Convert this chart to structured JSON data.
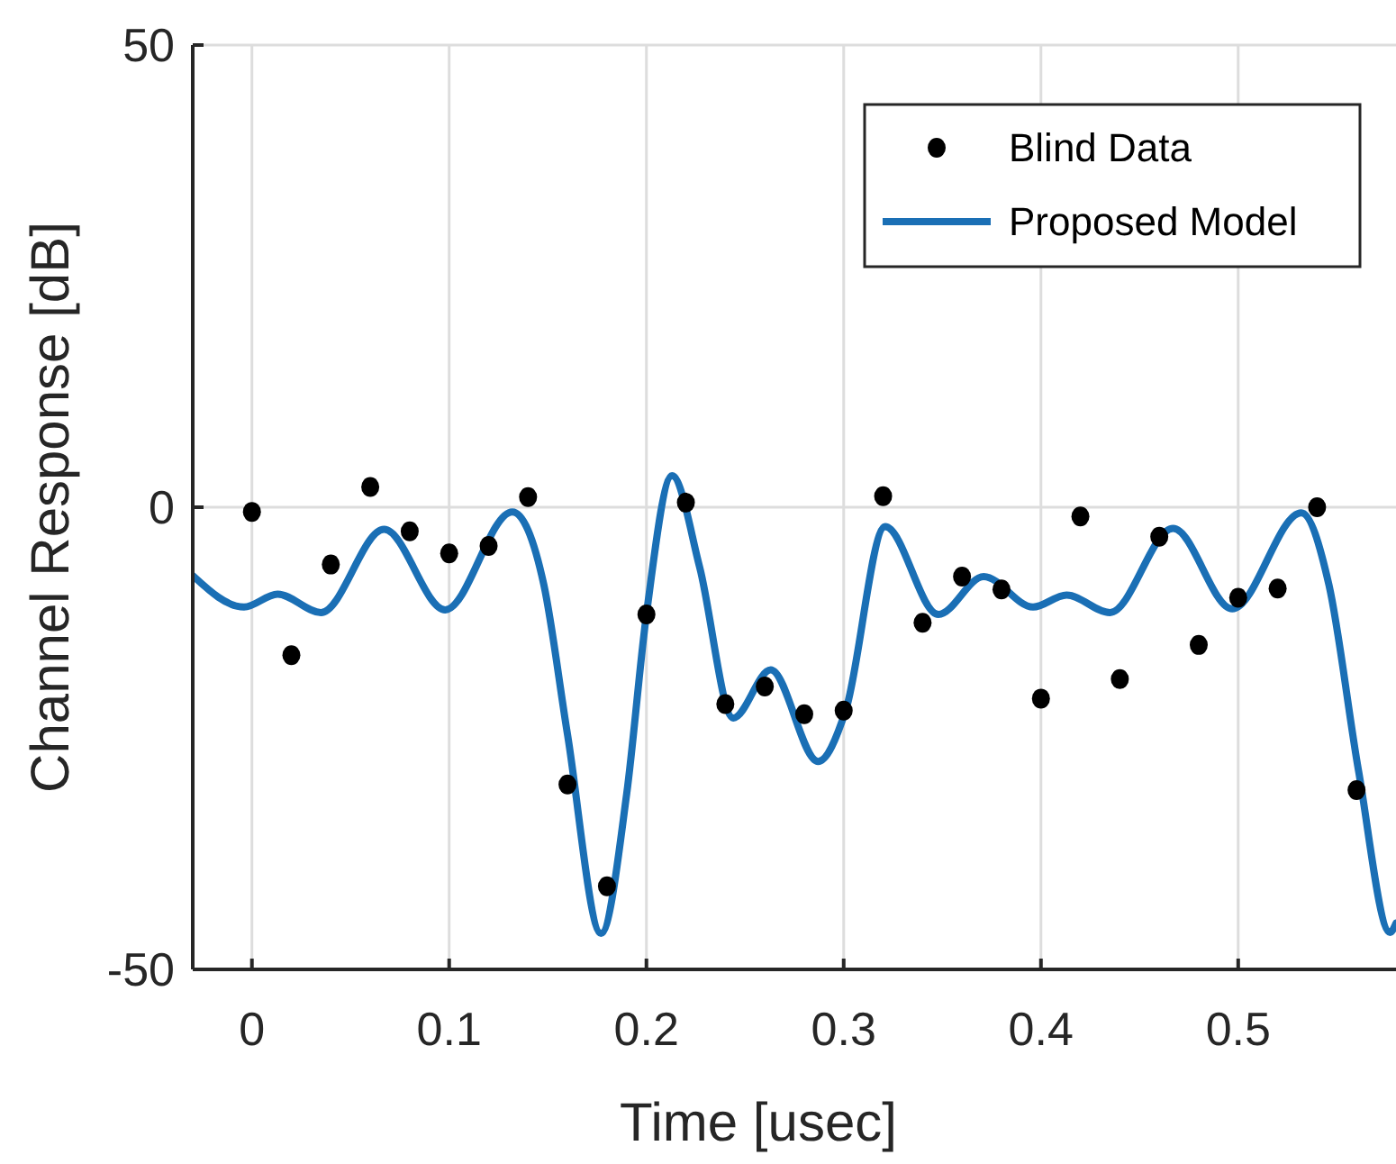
{
  "chart_data": {
    "type": "scatter",
    "xlabel": "Time [usec]",
    "ylabel": "Channel Response [dB]",
    "xlim": [
      -0.03,
      0.58
    ],
    "ylim": [
      -50,
      50
    ],
    "xticks": [
      0,
      0.1,
      0.2,
      0.3,
      0.4,
      0.5
    ],
    "yticks": [
      -50,
      0,
      50
    ],
    "grid": true,
    "legend": "top right",
    "series": [
      {
        "name": "Blind Data",
        "marker": "circle",
        "color": "#000000",
        "x": [
          0,
          0.02,
          0.04,
          0.06,
          0.08,
          0.1,
          0.12,
          0.14,
          0.16,
          0.18,
          0.2,
          0.22,
          0.24,
          0.26,
          0.28,
          0.3,
          0.32,
          0.34,
          0.36,
          0.38,
          0.4,
          0.42,
          0.44,
          0.46,
          0.48,
          0.5,
          0.52,
          0.54,
          0.56
        ],
        "values": [
          -0.5,
          -16,
          -6.2,
          2.2,
          -2.6,
          -5,
          -4.2,
          1.1,
          -30,
          -41,
          -11.6,
          0.5,
          -21.3,
          -19.4,
          -22.4,
          -22,
          1.2,
          -12.5,
          -7.5,
          -8.9,
          -20.7,
          -1,
          -18.6,
          -3.2,
          -14.9,
          -9.8,
          -8.8,
          0,
          -30.6
        ]
      },
      {
        "name": "Proposed Model",
        "type": "line",
        "line_style": "solid",
        "color": "#1a6fb5",
        "x": [
          -0.03,
          -0.004,
          0.013,
          0.035,
          0.067,
          0.098,
          0.132,
          0.148,
          0.16,
          0.177,
          0.19,
          0.2,
          0.213,
          0.227,
          0.244,
          0.263,
          0.287,
          0.301,
          0.321,
          0.348,
          0.371,
          0.396,
          0.413,
          0.435,
          0.467,
          0.497,
          0.532,
          0.546,
          0.561,
          0.577,
          0.58
        ],
        "values": [
          -7.4,
          -10.8,
          -9.4,
          -11.4,
          -2.4,
          -11.1,
          -0.5,
          -8.4,
          -24.6,
          -46.1,
          -31,
          -11.6,
          3.4,
          -6.5,
          -22.8,
          -17.6,
          -27.5,
          -22,
          -2.1,
          -11.6,
          -7.5,
          -10.8,
          -9.5,
          -11.4,
          -2.3,
          -11,
          -0.6,
          -8.4,
          -28.5,
          -46,
          -45
        ]
      }
    ]
  }
}
